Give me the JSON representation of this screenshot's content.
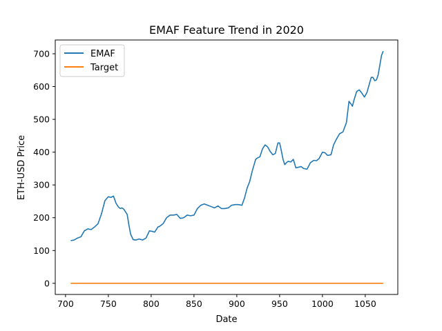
{
  "chart_data": {
    "type": "line",
    "title": "EMAF Feature Trend in 2020",
    "xlabel": "Date",
    "ylabel": "ETH-USD Price",
    "xlim": [
      688,
      1088
    ],
    "ylim": [
      -34,
      742
    ],
    "xticks": [
      700,
      750,
      800,
      850,
      900,
      950,
      1000,
      1050
    ],
    "yticks": [
      0,
      100,
      200,
      300,
      400,
      500,
      600,
      700
    ],
    "grid": false,
    "legend_position": "top-left",
    "series": [
      {
        "name": "EMAF",
        "color": "#1f77b4",
        "x": [
          706,
          710,
          714,
          718,
          722,
          726,
          730,
          734,
          738,
          742,
          746,
          748,
          750,
          753,
          756,
          759,
          762,
          764,
          766,
          768,
          772,
          774,
          776,
          779,
          782,
          786,
          790,
          794,
          798,
          802,
          804,
          808,
          810,
          814,
          818,
          822,
          826,
          830,
          834,
          838,
          842,
          846,
          850,
          854,
          858,
          862,
          866,
          870,
          874,
          878,
          882,
          886,
          890,
          894,
          898,
          902,
          906,
          909,
          912,
          915,
          918,
          922,
          924,
          927,
          930,
          933,
          936,
          939,
          942,
          945,
          948,
          950,
          952,
          954,
          956,
          958,
          960,
          963,
          966,
          969,
          972,
          975,
          978,
          982,
          986,
          990,
          993,
          996,
          1000,
          1003,
          1006,
          1010,
          1013,
          1016,
          1020,
          1024,
          1028,
          1031,
          1033,
          1035,
          1037,
          1040,
          1043,
          1046,
          1049,
          1052,
          1055,
          1057,
          1059,
          1061,
          1063,
          1065,
          1067,
          1069,
          1071
        ],
        "values": [
          130,
          132,
          138,
          142,
          160,
          166,
          164,
          172,
          182,
          212,
          252,
          258,
          264,
          262,
          266,
          244,
          232,
          228,
          230,
          226,
          210,
          178,
          150,
          133,
          132,
          135,
          132,
          138,
          160,
          158,
          156,
          172,
          174,
          182,
          200,
          208,
          208,
          210,
          198,
          200,
          208,
          206,
          208,
          228,
          238,
          242,
          238,
          234,
          230,
          236,
          228,
          228,
          230,
          238,
          240,
          240,
          238,
          260,
          290,
          310,
          342,
          378,
          382,
          386,
          410,
          422,
          416,
          402,
          392,
          396,
          428,
          428,
          404,
          378,
          362,
          368,
          372,
          370,
          378,
          352,
          354,
          356,
          350,
          348,
          368,
          375,
          374,
          380,
          400,
          398,
          390,
          392,
          422,
          438,
          456,
          462,
          490,
          555,
          548,
          540,
          560,
          585,
          590,
          580,
          568,
          582,
          610,
          628,
          628,
          618,
          620,
          635,
          665,
          695,
          708
        ]
      },
      {
        "name": "Target",
        "color": "#ff7f0e",
        "x": [
          706,
          1071
        ],
        "values": [
          0,
          0
        ]
      }
    ]
  }
}
